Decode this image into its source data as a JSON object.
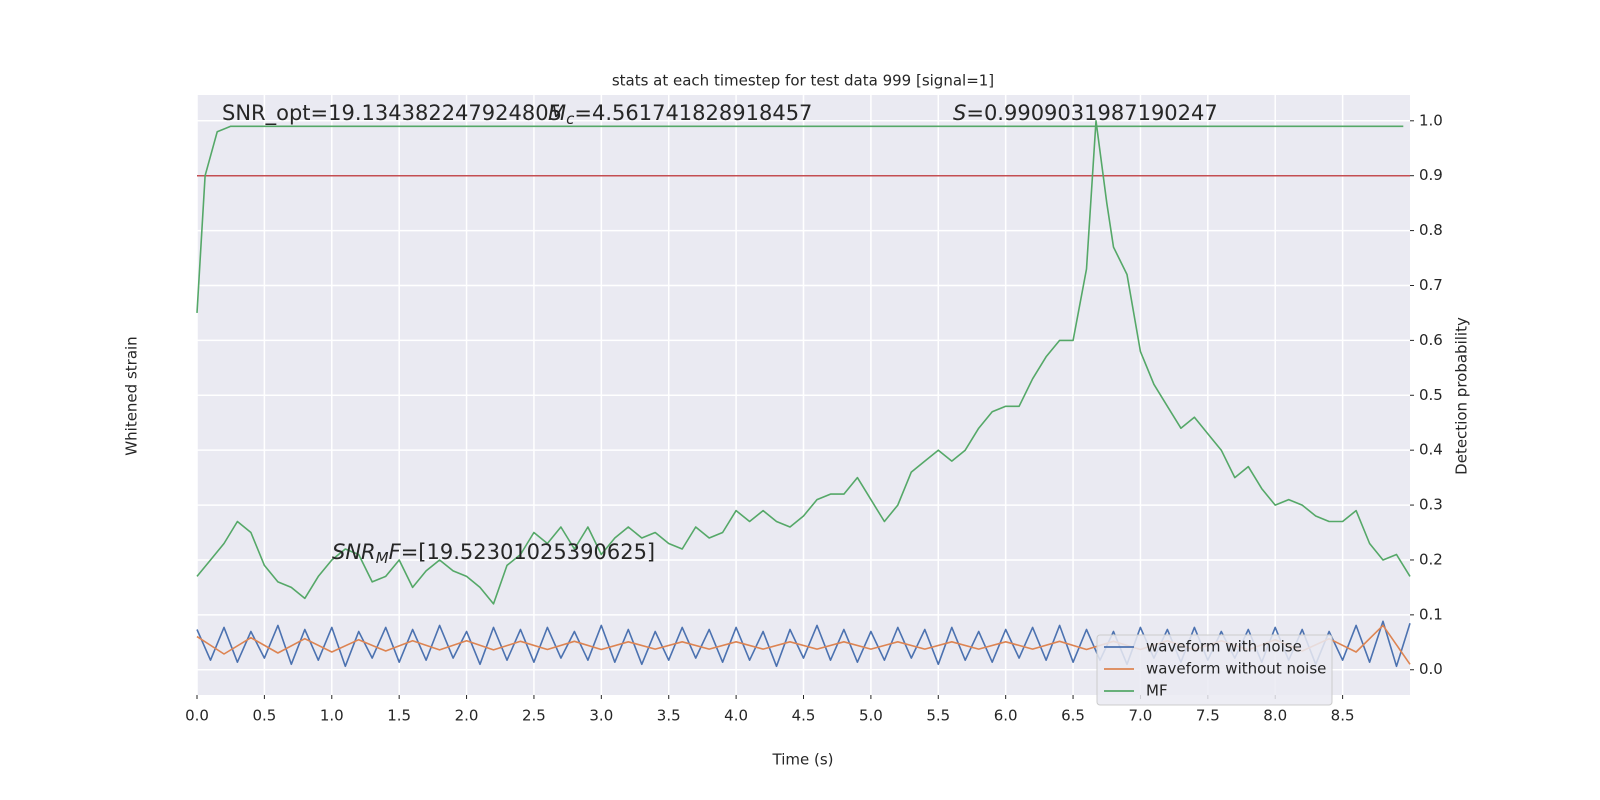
{
  "chart_data": {
    "type": "line",
    "title": "stats at each timestep for test data 999 [signal=1]",
    "xlabel": "Time (s)",
    "ylabel": "Whitened strain",
    "y2label": "Detection probability",
    "xlim": [
      0,
      9.0
    ],
    "xticks": [
      {
        "value": 0,
        "label": "0.0"
      },
      {
        "value": 0.5,
        "label": "0.5"
      },
      {
        "value": 1,
        "label": "1.0"
      },
      {
        "value": 1.5,
        "label": "1.5"
      },
      {
        "value": 2,
        "label": "2.0"
      },
      {
        "value": 2.5,
        "label": "2.5"
      },
      {
        "value": 3,
        "label": "3.0"
      },
      {
        "value": 3.5,
        "label": "3.5"
      },
      {
        "value": 4,
        "label": "4.0"
      },
      {
        "value": 4.5,
        "label": "4.5"
      },
      {
        "value": 5,
        "label": "5.0"
      },
      {
        "value": 5.5,
        "label": "5.5"
      },
      {
        "value": 6,
        "label": "6.0"
      },
      {
        "value": 6.5,
        "label": "6.5"
      },
      {
        "value": 7,
        "label": "7.0"
      },
      {
        "value": 7.5,
        "label": "7.5"
      },
      {
        "value": 8,
        "label": "8.0"
      },
      {
        "value": 8.5,
        "label": "8.5"
      }
    ],
    "ylim": [
      -3,
      26.3
    ],
    "y2lim": [
      -0.046,
      1.047
    ],
    "y2ticks": [
      {
        "value": 0,
        "label": "0.0"
      },
      0.1,
      0.2,
      0.3,
      0.4,
      0.5,
      0.6,
      0.7,
      0.8,
      0.9,
      {
        "value": 1,
        "label": "1.0"
      }
    ],
    "grid": true,
    "legend": "lower right",
    "threshold": {
      "value": 0.9,
      "color": "#c44e52",
      "axis": "y2"
    },
    "annotations": [
      {
        "text": "SNR_opt=19.134382247924805"
      },
      {
        "symbol": "M",
        "sub": "c",
        "text": "=4.561741828918457"
      },
      {
        "symbol": "S",
        "text": "=0.9909031987190247"
      },
      {
        "symbol": "SNR",
        "sub": "M",
        "rest": "F",
        "text": "=[19.52301025390625]"
      }
    ],
    "series": [
      {
        "name": "waveform with noise",
        "color": "#4c72b0",
        "x": [
          0,
          0.1,
          0.2,
          0.3,
          0.4,
          0.5,
          0.6,
          0.7,
          0.8,
          0.9,
          1.0,
          1.1,
          1.2,
          1.3,
          1.4,
          1.5,
          1.6,
          1.7,
          1.8,
          1.9,
          2.0,
          2.1,
          2.2,
          2.3,
          2.4,
          2.5,
          2.6,
          2.7,
          2.8,
          2.9,
          3.0,
          3.1,
          3.2,
          3.3,
          3.4,
          3.5,
          3.6,
          3.7,
          3.8,
          3.9,
          4.0,
          4.1,
          4.2,
          4.3,
          4.4,
          4.5,
          4.6,
          4.7,
          4.8,
          4.9,
          5.0,
          5.1,
          5.2,
          5.3,
          5.4,
          5.5,
          5.6,
          5.7,
          5.8,
          5.9,
          6.0,
          6.1,
          6.2,
          6.3,
          6.4,
          6.5,
          6.6,
          6.7,
          6.8,
          6.9,
          7.0,
          7.1,
          7.2,
          7.3,
          7.4,
          7.5,
          7.6,
          7.7,
          7.8,
          7.9,
          8.0,
          8.1,
          8.2,
          8.3,
          8.4,
          8.5,
          8.6,
          8.7,
          8.8,
          8.9,
          9.0
        ],
        "values": [
          0.2,
          -1.3,
          0.3,
          -1.4,
          0.1,
          -1.2,
          0.4,
          -1.5,
          0.2,
          -1.3,
          0.3,
          -1.6,
          0.1,
          -1.2,
          0.3,
          -1.4,
          0.2,
          -1.3,
          0.4,
          -1.2,
          0.1,
          -1.5,
          0.3,
          -1.3,
          0.2,
          -1.4,
          0.3,
          -1.2,
          0.1,
          -1.3,
          0.4,
          -1.4,
          0.2,
          -1.5,
          0.1,
          -1.3,
          0.3,
          -1.2,
          0.2,
          -1.4,
          0.3,
          -1.3,
          0.1,
          -1.6,
          0.2,
          -1.2,
          0.4,
          -1.3,
          0.2,
          -1.4,
          0.1,
          -1.3,
          0.3,
          -1.2,
          0.2,
          -1.5,
          0.3,
          -1.3,
          0.1,
          -1.4,
          0.2,
          -1.2,
          0.3,
          -1.3,
          0.4,
          -1.4,
          0.2,
          -1.3,
          0.1,
          -1.5,
          0.3,
          -1.2,
          0.2,
          -1.4,
          0.3,
          -1.3,
          0.1,
          -1.2,
          0.2,
          -1.4,
          0.3,
          -1.3,
          0.2,
          -1.5,
          0.1,
          -1.3,
          0.4,
          -1.4,
          0.6,
          -1.6,
          0.5
        ]
      },
      {
        "name": "waveform without noise",
        "color": "#dd8452",
        "x": [
          0,
          0.2,
          0.4,
          0.6,
          0.8,
          1.0,
          1.2,
          1.4,
          1.6,
          1.8,
          2.0,
          2.2,
          2.4,
          2.6,
          2.8,
          3.0,
          3.2,
          3.4,
          3.6,
          3.8,
          4.0,
          4.2,
          4.4,
          4.6,
          4.8,
          5.0,
          5.2,
          5.4,
          5.6,
          5.8,
          6.0,
          6.2,
          6.4,
          6.6,
          6.8,
          7.0,
          7.2,
          7.4,
          7.6,
          7.8,
          8.0,
          8.2,
          8.4,
          8.6,
          8.8,
          9.0
        ],
        "values": [
          -0.15,
          -1.0,
          -0.2,
          -0.95,
          -0.25,
          -0.9,
          -0.3,
          -0.85,
          -0.35,
          -0.8,
          -0.35,
          -0.8,
          -0.38,
          -0.78,
          -0.38,
          -0.78,
          -0.4,
          -0.76,
          -0.4,
          -0.76,
          -0.4,
          -0.76,
          -0.4,
          -0.76,
          -0.4,
          -0.76,
          -0.4,
          -0.76,
          -0.4,
          -0.76,
          -0.4,
          -0.76,
          -0.38,
          -0.78,
          -0.38,
          -0.78,
          -0.35,
          -0.8,
          -0.35,
          -0.8,
          -0.3,
          -0.85,
          -0.25,
          -0.9,
          0.4,
          -1.5
        ]
      },
      {
        "name": "MF",
        "color": "#55a868",
        "axis": "y2",
        "x": [
          0,
          0.1,
          0.2,
          0.3,
          0.4,
          0.5,
          0.6,
          0.7,
          0.8,
          0.9,
          1.0,
          1.1,
          1.2,
          1.3,
          1.4,
          1.5,
          1.6,
          1.7,
          1.8,
          1.9,
          2.0,
          2.1,
          2.2,
          2.3,
          2.4,
          2.5,
          2.6,
          2.7,
          2.8,
          2.9,
          3.0,
          3.1,
          3.2,
          3.3,
          3.4,
          3.5,
          3.6,
          3.7,
          3.8,
          3.9,
          4.0,
          4.1,
          4.2,
          4.3,
          4.4,
          4.5,
          4.6,
          4.7,
          4.8,
          4.9,
          5.0,
          5.1,
          5.2,
          5.3,
          5.4,
          5.5,
          5.6,
          5.7,
          5.8,
          5.9,
          6.0,
          6.1,
          6.2,
          6.3,
          6.4,
          6.5,
          6.6,
          6.67,
          6.75,
          6.8,
          6.9,
          7.0,
          7.1,
          7.2,
          7.3,
          7.4,
          7.5,
          7.6,
          7.7,
          7.8,
          7.9,
          8.0,
          8.1,
          8.2,
          8.3,
          8.4,
          8.5,
          8.6,
          8.7,
          8.8,
          8.9,
          9.0
        ],
        "values": [
          0.17,
          0.2,
          0.23,
          0.27,
          0.25,
          0.19,
          0.16,
          0.15,
          0.13,
          0.17,
          0.2,
          0.22,
          0.21,
          0.16,
          0.17,
          0.2,
          0.15,
          0.18,
          0.2,
          0.18,
          0.17,
          0.15,
          0.12,
          0.19,
          0.21,
          0.25,
          0.23,
          0.26,
          0.22,
          0.26,
          0.21,
          0.24,
          0.26,
          0.24,
          0.25,
          0.23,
          0.22,
          0.26,
          0.24,
          0.25,
          0.29,
          0.27,
          0.29,
          0.27,
          0.26,
          0.28,
          0.31,
          0.32,
          0.32,
          0.35,
          0.31,
          0.27,
          0.3,
          0.36,
          0.38,
          0.4,
          0.38,
          0.4,
          0.44,
          0.47,
          0.48,
          0.48,
          0.53,
          0.57,
          0.6,
          0.6,
          0.73,
          1.0,
          0.85,
          0.77,
          0.72,
          0.58,
          0.52,
          0.48,
          0.44,
          0.46,
          0.43,
          0.4,
          0.35,
          0.37,
          0.33,
          0.3,
          0.31,
          0.3,
          0.28,
          0.27,
          0.27,
          0.29,
          0.23,
          0.2,
          0.21,
          0.17
        ]
      },
      {
        "color": "#55a868",
        "axis": "y2",
        "x": [
          0,
          0.06,
          0.15,
          0.25,
          8.95
        ],
        "values": [
          0.65,
          0.9,
          0.98,
          0.99,
          0.99
        ]
      }
    ]
  }
}
